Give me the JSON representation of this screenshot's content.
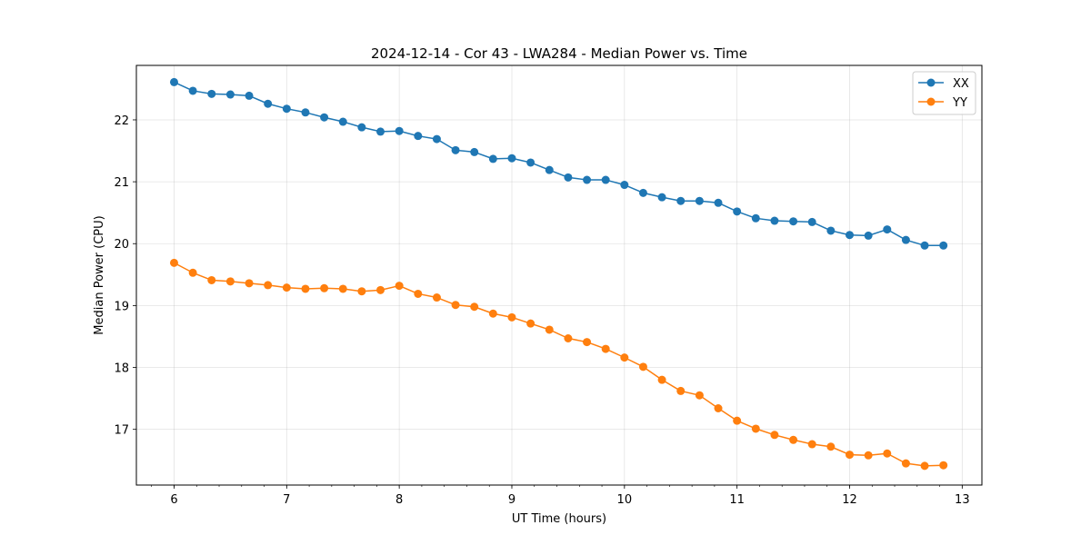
{
  "chart_data": {
    "type": "line",
    "title": "2024-12-14 - Cor 43 - LWA284 - Median Power vs. Time",
    "xlabel": "UT Time (hours)",
    "ylabel": "Median Power (CPU)",
    "xlim": [
      5.665,
      13.175
    ],
    "ylim": [
      16.1,
      22.88
    ],
    "xticks": [
      6,
      7,
      8,
      9,
      10,
      11,
      12,
      13
    ],
    "xtick_labels": [
      "6",
      "7",
      "8",
      "9",
      "10",
      "11",
      "12",
      "13"
    ],
    "xminor_step": 0.2,
    "yticks": [
      17,
      18,
      19,
      20,
      21,
      22
    ],
    "ytick_labels": [
      "17",
      "18",
      "19",
      "20",
      "21",
      "22"
    ],
    "grid": true,
    "legend_position": "top-right",
    "x": [
      6.0,
      6.1667,
      6.3333,
      6.5,
      6.6667,
      6.8333,
      7.0,
      7.1667,
      7.3333,
      7.5,
      7.6667,
      7.8333,
      8.0,
      8.1667,
      8.3333,
      8.5,
      8.6667,
      8.8333,
      9.0,
      9.1667,
      9.3333,
      9.5,
      9.6667,
      9.8333,
      10.0,
      10.1667,
      10.3333,
      10.5,
      10.6667,
      10.8333,
      11.0,
      11.1667,
      11.3333,
      11.5,
      11.6667,
      11.8333,
      12.0,
      12.1667,
      12.3333,
      12.5,
      12.6667,
      12.8333
    ],
    "series": [
      {
        "name": "XX",
        "color": "#1f77b4",
        "values": [
          22.61,
          22.47,
          22.42,
          22.41,
          22.39,
          22.26,
          22.18,
          22.12,
          22.04,
          21.97,
          21.88,
          21.81,
          21.82,
          21.74,
          21.69,
          21.51,
          21.48,
          21.37,
          21.38,
          21.31,
          21.19,
          21.07,
          21.03,
          21.03,
          20.95,
          20.82,
          20.75,
          20.69,
          20.69,
          20.66,
          20.52,
          20.41,
          20.37,
          20.36,
          20.35,
          20.21,
          20.14,
          20.13,
          20.23,
          20.06,
          19.97,
          19.97
        ]
      },
      {
        "name": "YY",
        "color": "#ff7f0e",
        "values": [
          19.69,
          19.53,
          19.41,
          19.39,
          19.36,
          19.33,
          19.29,
          19.27,
          19.28,
          19.27,
          19.23,
          19.25,
          19.32,
          19.19,
          19.13,
          19.01,
          18.98,
          18.87,
          18.81,
          18.71,
          18.61,
          18.47,
          18.41,
          18.3,
          18.16,
          18.01,
          17.8,
          17.62,
          17.55,
          17.34,
          17.14,
          17.01,
          16.91,
          16.83,
          16.76,
          16.72,
          16.59,
          16.58,
          16.61,
          16.45,
          16.41,
          16.42
        ]
      }
    ]
  }
}
